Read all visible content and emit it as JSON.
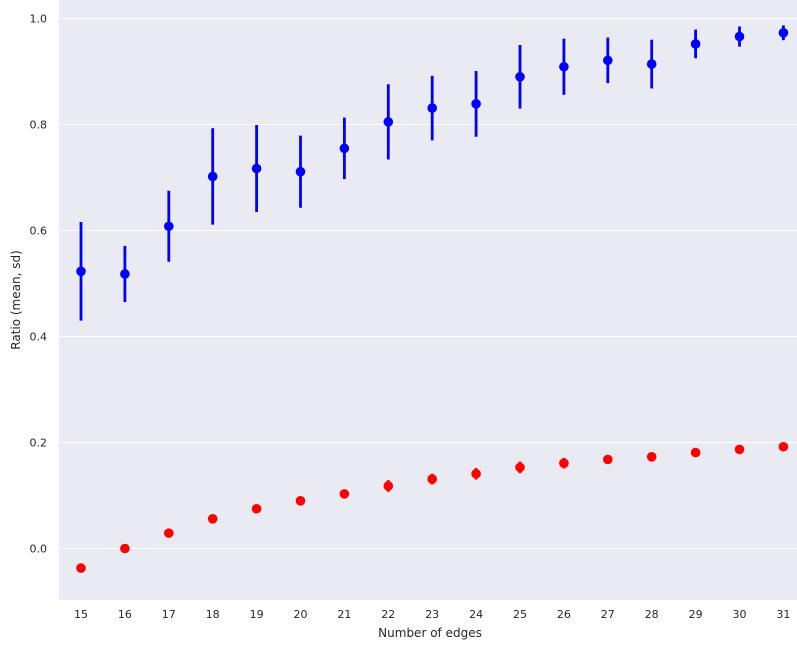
{
  "chart_data": {
    "type": "scatter",
    "title": "",
    "xlabel": "Number of edges",
    "ylabel": "Ratio (mean, sd)",
    "categories": [
      "15",
      "16",
      "17",
      "18",
      "19",
      "20",
      "21",
      "22",
      "23",
      "24",
      "25",
      "26",
      "27",
      "28",
      "29",
      "30",
      "31"
    ],
    "ylim": [
      -0.1,
      1.02
    ],
    "yticks": [
      "0.0",
      "0.2",
      "0.4",
      "0.6",
      "0.8",
      "1.0"
    ],
    "grid": true,
    "series": [
      {
        "color": "#0000ff",
        "mean": [
          0.523,
          0.518,
          0.608,
          0.702,
          0.717,
          0.711,
          0.755,
          0.805,
          0.831,
          0.839,
          0.89,
          0.909,
          0.921,
          0.914,
          0.952,
          0.966,
          0.973
        ],
        "sd": [
          0.093,
          0.053,
          0.067,
          0.091,
          0.082,
          0.068,
          0.058,
          0.071,
          0.061,
          0.062,
          0.06,
          0.053,
          0.043,
          0.046,
          0.027,
          0.019,
          0.014
        ]
      },
      {
        "color": "#ff0000",
        "mean": [
          -0.037,
          0.0,
          0.029,
          0.056,
          0.075,
          0.09,
          0.103,
          0.118,
          0.131,
          0.141,
          0.153,
          0.161,
          0.168,
          0.173,
          0.181,
          0.187,
          0.192
        ],
        "sd": [
          0.003,
          0.003,
          0.004,
          0.004,
          0.005,
          0.006,
          0.007,
          0.011,
          0.01,
          0.011,
          0.011,
          0.01,
          0.007,
          0.006,
          0.005,
          0.004,
          0.004
        ]
      }
    ]
  }
}
